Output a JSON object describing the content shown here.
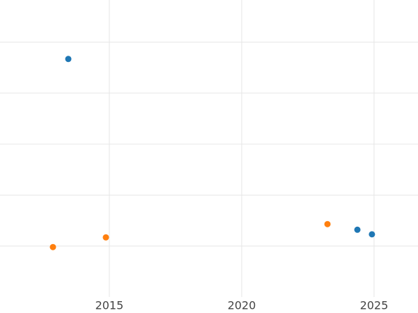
{
  "chart_data": {
    "type": "scatter",
    "series": [
      {
        "color": "#1f77b4",
        "x": [
          2013.45,
          2024.37,
          2024.92
        ],
        "values": [
          4.67,
          1.32,
          1.23
        ]
      },
      {
        "color": "#ff7f0e",
        "x": [
          2012.87,
          2014.87,
          2023.24
        ],
        "values": [
          0.98,
          1.17,
          1.43
        ]
      }
    ],
    "xlim": [
      2010.87,
      2026.66
    ],
    "xticks": [
      2015,
      2020,
      2025
    ],
    "ylim": [
      0,
      5.8
    ],
    "ygrid": [
      1,
      2,
      3,
      4,
      5
    ],
    "grid": true
  }
}
